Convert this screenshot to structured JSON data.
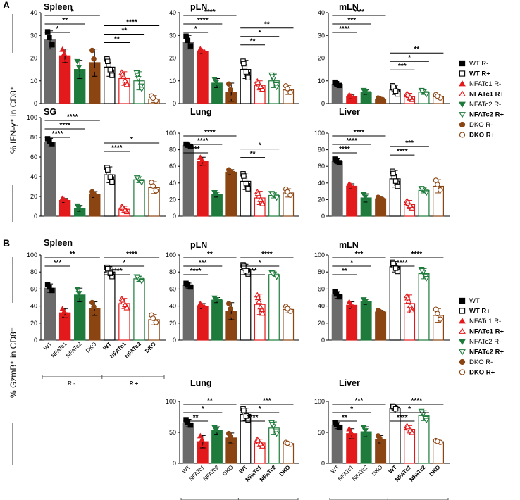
{
  "panel_labels": [
    "A",
    "B"
  ],
  "y_labels": {
    "A": "% IFN-γ⁺ in CD8⁺",
    "B": "% GzmB⁺ in CD8⁻"
  },
  "legends": {
    "A": [
      "WT R-",
      "WT R+",
      "NFATc1 R-",
      "NFATc1 R+",
      "NFATc2 R-",
      "NFATc2 R+",
      "DKO R-",
      "DKO R+"
    ],
    "B": [
      "WT",
      "WT  R+",
      "NFATc1 R-",
      "NFATc1 R+",
      "NFATc2 R-",
      "NFATc2 R+",
      "DKO R-",
      "DKO R+"
    ]
  },
  "x_categories": [
    "WT",
    "NFATc1",
    "NFATc2",
    "DKO",
    "WT",
    "NFATc1",
    "NFATc2",
    "DKO"
  ],
  "x_groups": [
    "R -",
    "R +"
  ],
  "series_colors": [
    "#6b6b6b",
    "#e31a1c",
    "#1e7b3c",
    "#8b4513"
  ],
  "chart_data": [
    {
      "type": "bar",
      "title": "Spleen",
      "ylim": [
        0,
        40
      ],
      "yticks": [
        0,
        10,
        20,
        30,
        40
      ],
      "categories": [
        "WT R-",
        "NFATc1 R-",
        "NFATc2 R-",
        "DKO R-",
        "WT R+",
        "NFATc1 R+",
        "NFATc2 R+",
        "DKO R+"
      ],
      "values": [
        28,
        21,
        15,
        18,
        16,
        11,
        10,
        2
      ],
      "errors": [
        4,
        3,
        4,
        6,
        4,
        3,
        4,
        1.5
      ],
      "significance": [
        {
          "from": 0,
          "to": 3,
          "label": "*"
        },
        {
          "from": 0,
          "to": 2,
          "label": "**"
        },
        {
          "from": 0,
          "to": 1,
          "label": "*"
        },
        {
          "from": 4,
          "to": 7,
          "label": "****"
        },
        {
          "from": 4,
          "to": 6,
          "label": "**"
        },
        {
          "from": 4,
          "to": 5,
          "label": "**"
        }
      ]
    },
    {
      "type": "bar",
      "title": "pLN",
      "ylim": [
        0,
        40
      ],
      "yticks": [
        0,
        10,
        20,
        30,
        40
      ],
      "categories": [
        "WT R-",
        "NFATc1 R-",
        "NFATc2 R-",
        "DKO R-",
        "WT R+",
        "NFATc1 R+",
        "NFATc2 R+",
        "DKO R+"
      ],
      "values": [
        27,
        23,
        9,
        5,
        15,
        8,
        10,
        6
      ],
      "errors": [
        3,
        1,
        2,
        4,
        4,
        2,
        3,
        2
      ],
      "significance": [
        {
          "from": 0,
          "to": 3,
          "label": "****"
        },
        {
          "from": 0,
          "to": 2,
          "label": "****"
        },
        {
          "from": 0,
          "to": 1,
          "label": "*"
        },
        {
          "from": 4,
          "to": 7,
          "label": "**"
        },
        {
          "from": 4,
          "to": 6,
          "label": "*"
        },
        {
          "from": 4,
          "to": 5,
          "label": "**"
        }
      ]
    },
    {
      "type": "bar",
      "title": "mLN",
      "ylim": [
        0,
        40
      ],
      "yticks": [
        0,
        10,
        20,
        30,
        40
      ],
      "categories": [
        "WT R-",
        "NFATc1 R-",
        "NFATc2 R-",
        "DKO R-",
        "WT R+",
        "NFATc1 R+",
        "NFATc2 R+",
        "DKO R+"
      ],
      "values": [
        8.5,
        3,
        5,
        2,
        6,
        3,
        5,
        3
      ],
      "errors": [
        1,
        0.8,
        1,
        0.5,
        2,
        1.5,
        1,
        1
      ],
      "significance": [
        {
          "from": 0,
          "to": 3,
          "label": "****"
        },
        {
          "from": 0,
          "to": 2,
          "label": "***"
        },
        {
          "from": 0,
          "to": 1,
          "label": "****"
        },
        {
          "from": 4,
          "to": 7,
          "label": "**"
        },
        {
          "from": 4,
          "to": 6,
          "label": "*"
        },
        {
          "from": 4,
          "to": 5,
          "label": "***"
        }
      ]
    },
    {
      "type": "bar",
      "title": "SG",
      "ylim": [
        0,
        100
      ],
      "yticks": [
        0,
        20,
        40,
        60,
        80,
        100
      ],
      "categories": [
        "WT R-",
        "NFATc1 R-",
        "NFATc2 R-",
        "DKO R-",
        "WT R+",
        "NFATc1 R+",
        "NFATc2 R+",
        "DKO R+"
      ],
      "values": [
        75,
        16,
        8,
        22,
        42,
        7,
        37,
        29
      ],
      "errors": [
        4,
        2,
        3,
        3,
        8,
        3,
        3,
        6
      ],
      "significance": [
        {
          "from": 0,
          "to": 3,
          "label": "****"
        },
        {
          "from": 0,
          "to": 2,
          "label": "****"
        },
        {
          "from": 0,
          "to": 1,
          "label": "****"
        },
        {
          "from": 4,
          "to": 7,
          "label": "*"
        },
        {
          "from": 4,
          "to": 5,
          "label": "****"
        }
      ]
    },
    {
      "type": "bar",
      "title": "Lung",
      "ylim": [
        0,
        100
      ],
      "yticks": [
        0,
        20,
        40,
        60,
        80,
        100
      ],
      "categories": [
        "WT R-",
        "NFATc1 R-",
        "NFATc2 R-",
        "DKO R-",
        "WT R+",
        "NFATc1 R+",
        "NFATc2 R+",
        "DKO R+"
      ],
      "values": [
        85,
        66,
        26,
        53,
        42,
        22,
        25,
        28
      ],
      "errors": [
        2,
        5,
        3,
        3,
        10,
        8,
        3,
        5
      ],
      "significance": [
        {
          "from": 0,
          "to": 3,
          "label": "****"
        },
        {
          "from": 0,
          "to": 2,
          "label": "****"
        },
        {
          "from": 0,
          "to": 1,
          "label": "***"
        },
        {
          "from": 4,
          "to": 6,
          "label": "*"
        },
        {
          "from": 4,
          "to": 5,
          "label": "**"
        }
      ]
    },
    {
      "type": "bar",
      "title": "Liver",
      "ylim": [
        0,
        100
      ],
      "yticks": [
        0,
        20,
        40,
        60,
        80,
        100
      ],
      "categories": [
        "WT R-",
        "NFATc1 R-",
        "NFATc2 R-",
        "DKO R-",
        "WT R+",
        "NFATc1 R+",
        "NFATc2 R+",
        "DKO R+"
      ],
      "values": [
        66,
        36,
        22,
        21,
        45,
        14,
        31,
        36
      ],
      "errors": [
        3,
        3,
        5,
        2,
        10,
        5,
        3,
        8
      ],
      "significance": [
        {
          "from": 0,
          "to": 3,
          "label": "****"
        },
        {
          "from": 0,
          "to": 2,
          "label": "****"
        },
        {
          "from": 0,
          "to": 1,
          "label": "****"
        },
        {
          "from": 4,
          "to": 6,
          "label": "***"
        },
        {
          "from": 4,
          "to": 5,
          "label": "****"
        }
      ]
    },
    {
      "type": "bar",
      "title": "Spleen",
      "ylim": [
        0,
        100
      ],
      "yticks": [
        0,
        20,
        40,
        60,
        80,
        100
      ],
      "categories": [
        "WT R-",
        "NFATc1 R-",
        "NFATc2 R-",
        "DKO R-",
        "WT R+",
        "NFATc1 R+",
        "NFATc2 R+",
        "DKO R+"
      ],
      "values": [
        61,
        32,
        53,
        37,
        80,
        43,
        72,
        24
      ],
      "errors": [
        5,
        5,
        8,
        8,
        6,
        6,
        3,
        6
      ],
      "significance": [
        {
          "from": 0,
          "to": 3,
          "label": "**"
        },
        {
          "from": 0,
          "to": 1,
          "label": "***"
        },
        {
          "from": 4,
          "to": 7,
          "label": "****"
        },
        {
          "from": 4,
          "to": 6,
          "label": "*"
        },
        {
          "from": 4,
          "to": 5,
          "label": "****"
        }
      ]
    },
    {
      "type": "bar",
      "title": "pLN",
      "ylim": [
        0,
        100
      ],
      "yticks": [
        0,
        20,
        40,
        60,
        80,
        100
      ],
      "categories": [
        "WT R-",
        "NFATc1 R-",
        "NFATc2 R-",
        "DKO R-",
        "WT R+",
        "NFATc1 R+",
        "NFATc2 R+",
        "DKO R+"
      ],
      "values": [
        64,
        40,
        47,
        34,
        83,
        42,
        77,
        36
      ],
      "errors": [
        3,
        3,
        3,
        10,
        6,
        12,
        3,
        4
      ],
      "significance": [
        {
          "from": 0,
          "to": 3,
          "label": "**"
        },
        {
          "from": 0,
          "to": 2,
          "label": "***"
        },
        {
          "from": 0,
          "to": 1,
          "label": "****"
        },
        {
          "from": 4,
          "to": 7,
          "label": "****"
        },
        {
          "from": 4,
          "to": 6,
          "label": "*"
        },
        {
          "from": 4,
          "to": 5,
          "label": "***"
        }
      ]
    },
    {
      "type": "bar",
      "title": "mLN",
      "ylim": [
        0,
        100
      ],
      "yticks": [
        0,
        20,
        40,
        60,
        80,
        100
      ],
      "categories": [
        "WT R-",
        "NFATc1 R-",
        "NFATc2 R-",
        "DKO R-",
        "WT R+",
        "NFATc1 R+",
        "NFATc2 R+",
        "DKO R+"
      ],
      "values": [
        53,
        41,
        45,
        33,
        86,
        43,
        78,
        29
      ],
      "errors": [
        4,
        4,
        3,
        2,
        6,
        10,
        6,
        8
      ],
      "significance": [
        {
          "from": 0,
          "to": 3,
          "label": "***"
        },
        {
          "from": 0,
          "to": 2,
          "label": "*"
        },
        {
          "from": 0,
          "to": 1,
          "label": "**"
        },
        {
          "from": 4,
          "to": 7,
          "label": "****"
        },
        {
          "from": 4,
          "to": 5,
          "label": "****"
        }
      ]
    },
    {
      "type": "bar",
      "title": "Lung",
      "ylim": [
        0,
        100
      ],
      "yticks": [
        0,
        50,
        100
      ],
      "categories": [
        "WT R-",
        "NFATc1 R-",
        "NFATc2 R-",
        "DKO R-",
        "WT R+",
        "NFATc1 R+",
        "NFATc2 R+",
        "DKO R+"
      ],
      "values": [
        65,
        35,
        53,
        41,
        79,
        33,
        57,
        32
      ],
      "errors": [
        6,
        10,
        6,
        8,
        10,
        6,
        10,
        2
      ],
      "significance": [
        {
          "from": 0,
          "to": 3,
          "label": "**"
        },
        {
          "from": 0,
          "to": 2,
          "label": "*"
        },
        {
          "from": 0,
          "to": 1,
          "label": "**"
        },
        {
          "from": 4,
          "to": 7,
          "label": "***"
        },
        {
          "from": 4,
          "to": 6,
          "label": "*"
        },
        {
          "from": 4,
          "to": 5,
          "label": "****"
        }
      ]
    },
    {
      "type": "bar",
      "title": "Liver",
      "ylim": [
        0,
        100
      ],
      "yticks": [
        0,
        50,
        100
      ],
      "categories": [
        "WT R-",
        "NFATc1 R-",
        "NFATc2 R-",
        "DKO R-",
        "WT R+",
        "NFATc1 R+",
        "NFATc2 R+",
        "DKO R+"
      ],
      "values": [
        61,
        48,
        51,
        39,
        89,
        55,
        77,
        35
      ],
      "errors": [
        5,
        8,
        8,
        6,
        4,
        6,
        8,
        2
      ],
      "significance": [
        {
          "from": 0,
          "to": 3,
          "label": "***"
        },
        {
          "from": 0,
          "to": 2,
          "label": "*"
        },
        {
          "from": 0,
          "to": 1,
          "label": "**"
        },
        {
          "from": 4,
          "to": 7,
          "label": "****"
        },
        {
          "from": 4,
          "to": 6,
          "label": "*"
        },
        {
          "from": 4,
          "to": 5,
          "label": "****"
        }
      ]
    }
  ]
}
